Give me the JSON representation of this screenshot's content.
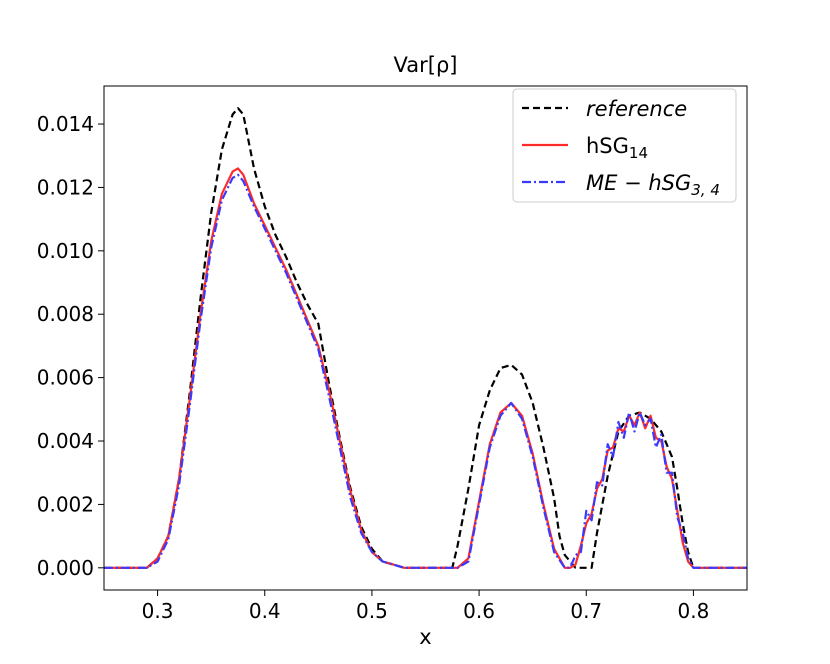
{
  "chart_data": {
    "type": "line",
    "title": "Var[ρ]",
    "xlabel": "x",
    "ylabel": "",
    "xlim": [
      0.25,
      0.85
    ],
    "ylim": [
      -0.0007,
      0.0152
    ],
    "x_ticks": [
      0.3,
      0.4,
      0.5,
      0.6,
      0.7,
      0.8
    ],
    "x_tick_labels": [
      "0.3",
      "0.4",
      "0.5",
      "0.6",
      "0.7",
      "0.8"
    ],
    "y_ticks": [
      0.0,
      0.002,
      0.004,
      0.006,
      0.008,
      0.01,
      0.012,
      0.014
    ],
    "y_tick_labels": [
      "0.000",
      "0.002",
      "0.004",
      "0.006",
      "0.008",
      "0.010",
      "0.012",
      "0.014"
    ],
    "grid": false,
    "legend_position": "top-right",
    "series": [
      {
        "name": "reference",
        "color": "#000000",
        "style": "dashed",
        "x": [
          0.25,
          0.29,
          0.3,
          0.31,
          0.32,
          0.33,
          0.34,
          0.35,
          0.36,
          0.37,
          0.375,
          0.38,
          0.39,
          0.4,
          0.41,
          0.42,
          0.43,
          0.44,
          0.45,
          0.46,
          0.47,
          0.48,
          0.49,
          0.5,
          0.51,
          0.52,
          0.53,
          0.54,
          0.55,
          0.56,
          0.575,
          0.58,
          0.59,
          0.6,
          0.61,
          0.62,
          0.63,
          0.64,
          0.65,
          0.66,
          0.67,
          0.675,
          0.68,
          0.69,
          0.7,
          0.705,
          0.71,
          0.72,
          0.73,
          0.74,
          0.75,
          0.76,
          0.77,
          0.78,
          0.785,
          0.79,
          0.795,
          0.8,
          0.85
        ],
        "y": [
          0.0,
          0.0,
          0.0003,
          0.001,
          0.0028,
          0.0055,
          0.0085,
          0.0112,
          0.0132,
          0.0143,
          0.0145,
          0.0143,
          0.0126,
          0.0114,
          0.0105,
          0.0098,
          0.009,
          0.0083,
          0.0077,
          0.0058,
          0.0041,
          0.0025,
          0.0013,
          0.0006,
          0.0002,
          0.0001,
          0.0,
          0.0,
          0.0,
          0.0,
          0.0,
          0.0007,
          0.0025,
          0.0045,
          0.0056,
          0.0063,
          0.0064,
          0.0061,
          0.0052,
          0.0038,
          0.0022,
          0.001,
          0.0004,
          0.0,
          0.0,
          0.0,
          0.0011,
          0.0029,
          0.0043,
          0.0048,
          0.0049,
          0.0047,
          0.0043,
          0.0035,
          0.0025,
          0.0014,
          0.0005,
          0.0,
          0.0
        ]
      },
      {
        "name": "hSG",
        "name_subscript": "14",
        "color": "#ff2a2a",
        "style": "solid",
        "x": [
          0.25,
          0.29,
          0.3,
          0.31,
          0.32,
          0.33,
          0.34,
          0.35,
          0.36,
          0.37,
          0.375,
          0.38,
          0.39,
          0.4,
          0.41,
          0.42,
          0.43,
          0.44,
          0.45,
          0.46,
          0.47,
          0.48,
          0.49,
          0.5,
          0.51,
          0.52,
          0.53,
          0.54,
          0.55,
          0.56,
          0.58,
          0.59,
          0.6,
          0.61,
          0.62,
          0.63,
          0.64,
          0.65,
          0.66,
          0.67,
          0.68,
          0.685,
          0.69,
          0.695,
          0.7,
          0.705,
          0.71,
          0.715,
          0.72,
          0.725,
          0.73,
          0.735,
          0.74,
          0.745,
          0.75,
          0.755,
          0.76,
          0.765,
          0.77,
          0.775,
          0.78,
          0.785,
          0.79,
          0.795,
          0.8,
          0.85
        ],
        "y": [
          0.0,
          0.0,
          0.0003,
          0.001,
          0.0028,
          0.0053,
          0.008,
          0.0103,
          0.0118,
          0.0125,
          0.0126,
          0.0124,
          0.0115,
          0.0108,
          0.0101,
          0.0094,
          0.0086,
          0.0078,
          0.007,
          0.0056,
          0.004,
          0.0024,
          0.0012,
          0.0005,
          0.0002,
          0.0001,
          0.0,
          0.0,
          0.0,
          0.0,
          0.0,
          0.0003,
          0.0021,
          0.0039,
          0.0049,
          0.0052,
          0.0048,
          0.0036,
          0.002,
          0.0006,
          0.0,
          0.0,
          0.0001,
          0.0007,
          0.0014,
          0.0017,
          0.0025,
          0.0028,
          0.0037,
          0.0038,
          0.0044,
          0.0043,
          0.0048,
          0.0045,
          0.0049,
          0.0044,
          0.0048,
          0.0041,
          0.004,
          0.0032,
          0.0028,
          0.0018,
          0.0008,
          0.0002,
          0.0,
          0.0
        ]
      },
      {
        "name": "ME − hSG",
        "name_subscript": "3, 4",
        "color": "#3a3aff",
        "style": "dashdot",
        "x": [
          0.25,
          0.29,
          0.3,
          0.31,
          0.32,
          0.33,
          0.34,
          0.35,
          0.36,
          0.37,
          0.375,
          0.38,
          0.39,
          0.4,
          0.41,
          0.42,
          0.43,
          0.44,
          0.45,
          0.46,
          0.47,
          0.48,
          0.49,
          0.5,
          0.51,
          0.52,
          0.53,
          0.54,
          0.55,
          0.56,
          0.58,
          0.59,
          0.6,
          0.61,
          0.62,
          0.63,
          0.64,
          0.65,
          0.66,
          0.67,
          0.68,
          0.685,
          0.69,
          0.695,
          0.7,
          0.705,
          0.71,
          0.715,
          0.72,
          0.725,
          0.73,
          0.735,
          0.74,
          0.745,
          0.75,
          0.755,
          0.76,
          0.765,
          0.77,
          0.775,
          0.78,
          0.785,
          0.79,
          0.795,
          0.8,
          0.85
        ],
        "y": [
          0.0,
          0.0,
          0.0002,
          0.0009,
          0.0026,
          0.0051,
          0.0078,
          0.0101,
          0.0116,
          0.0123,
          0.0124,
          0.0122,
          0.0114,
          0.0107,
          0.01,
          0.0093,
          0.0085,
          0.0077,
          0.0069,
          0.0054,
          0.0038,
          0.0022,
          0.0011,
          0.0005,
          0.0002,
          0.0001,
          0.0,
          0.0,
          0.0,
          0.0,
          0.0,
          0.0002,
          0.002,
          0.0038,
          0.0048,
          0.0052,
          0.0047,
          0.0035,
          0.0019,
          0.0005,
          0.0,
          0.0,
          0.0004,
          0.0005,
          0.0018,
          0.0015,
          0.0027,
          0.0026,
          0.0039,
          0.0035,
          0.0046,
          0.0041,
          0.0049,
          0.0043,
          0.0049,
          0.0045,
          0.0047,
          0.0038,
          0.0042,
          0.003,
          0.003,
          0.0016,
          0.0011,
          0.0003,
          0.0,
          0.0
        ]
      }
    ]
  },
  "legend": {
    "entries": [
      {
        "text": "reference",
        "italic": true
      },
      {
        "text": "hSG",
        "sub": "14",
        "italic": false
      },
      {
        "text": "ME − hSG",
        "sub": "3, 4",
        "italic": true
      }
    ]
  }
}
